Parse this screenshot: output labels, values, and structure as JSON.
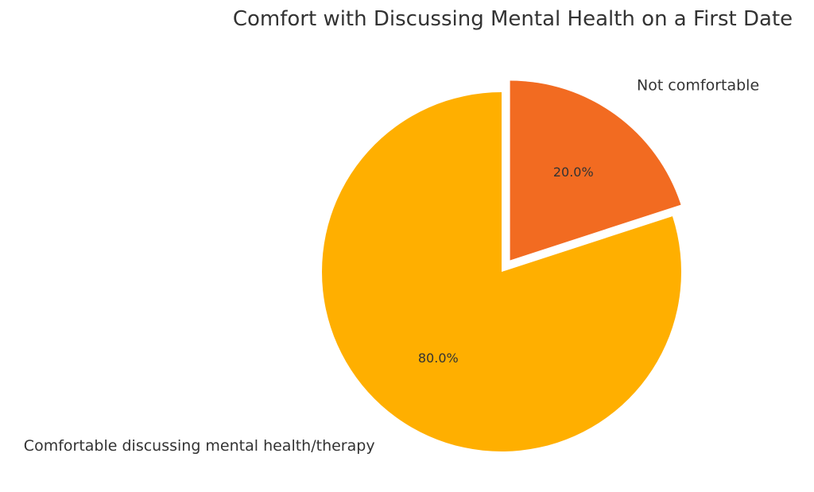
{
  "chart_data": {
    "type": "pie",
    "title": "Comfort with Discussing Mental Health on a First Date",
    "slices": [
      {
        "label": "Not comfortable",
        "value": 20.0,
        "pct_label": "20.0%",
        "color": "#F26B21"
      },
      {
        "label": "Comfortable discussing mental health/therapy",
        "value": 80.0,
        "pct_label": "80.0%",
        "color": "#FFAF00"
      }
    ],
    "exploded": [
      "Not comfortable"
    ],
    "start_angle_deg": 90,
    "direction": "clockwise"
  }
}
